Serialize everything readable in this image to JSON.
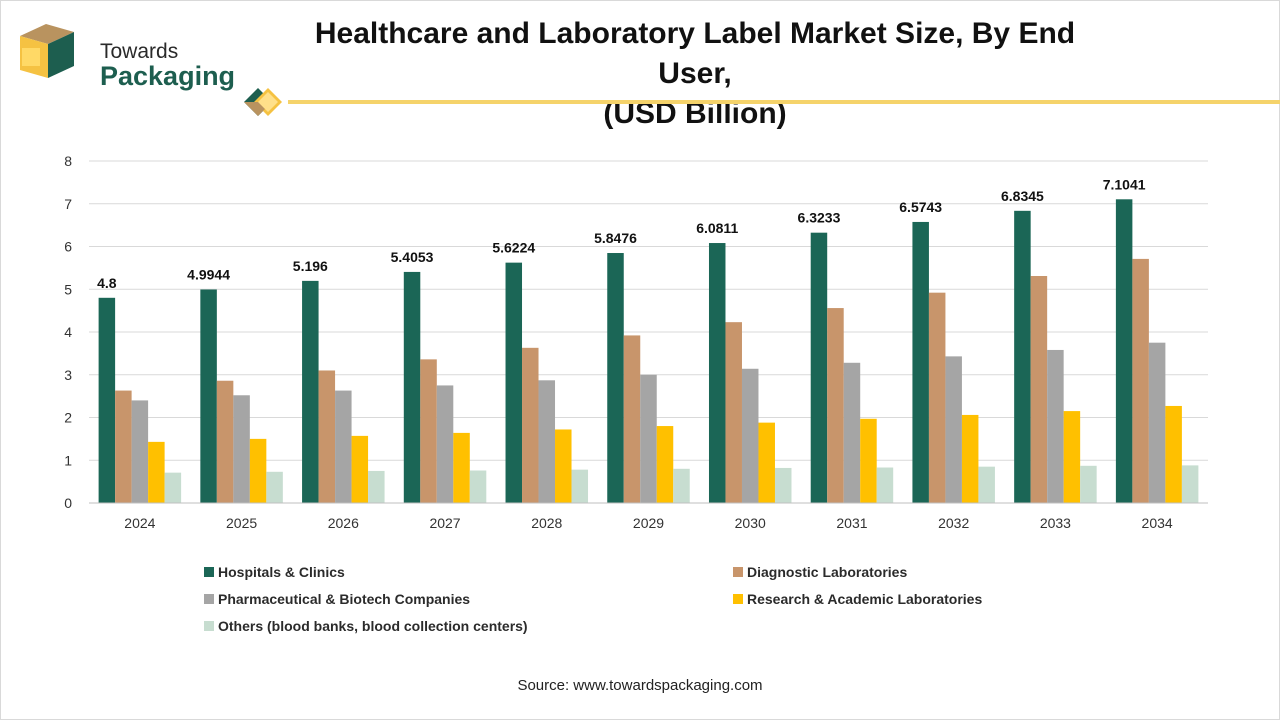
{
  "brand": {
    "line1": "Towards",
    "line2": "Packaging"
  },
  "title_line1": "Healthcare and Laboratory Label Market Size, By End User,",
  "title_line2": "(USD Billion)",
  "source": "Source: www.towardspackaging.com",
  "colors": {
    "brand_green": "#1d5e4f",
    "brand_gold": "#f5c242",
    "divider": "#f5d36b"
  },
  "chart_data": {
    "type": "bar",
    "title": "Healthcare and Laboratory Label Market Size, By End User, (USD Billion)",
    "categories": [
      "2024",
      "2025",
      "2026",
      "2027",
      "2028",
      "2029",
      "2030",
      "2031",
      "2032",
      "2033",
      "2034"
    ],
    "ylim": [
      0,
      8
    ],
    "yticks": [
      "0",
      "1",
      "2",
      "3",
      "4",
      "5",
      "6",
      "7",
      "8"
    ],
    "grid": true,
    "legend_position": "bottom",
    "series": [
      {
        "name": "Hospitals & Clinics",
        "color": "#1b6656",
        "values": [
          4.8,
          4.9944,
          5.196,
          5.4053,
          5.6224,
          5.8476,
          6.0811,
          6.3233,
          6.5743,
          6.8345,
          7.1041
        ],
        "labels": [
          "4.8",
          "4.9944",
          "5.196",
          "5.4053",
          "5.6224",
          "5.8476",
          "6.0811",
          "6.3233",
          "6.5743",
          "6.8345",
          "7.1041"
        ]
      },
      {
        "name": "Diagnostic Laboratories",
        "color": "#c8956b",
        "values": [
          2.63,
          2.86,
          3.1,
          3.36,
          3.63,
          3.92,
          4.23,
          4.56,
          4.92,
          5.31,
          5.71
        ]
      },
      {
        "name": "Pharmaceutical & Biotech Companies",
        "color": "#a5a5a5",
        "values": [
          2.4,
          2.52,
          2.63,
          2.75,
          2.87,
          3.0,
          3.14,
          3.28,
          3.43,
          3.58,
          3.75
        ]
      },
      {
        "name": "Research & Academic Laboratories",
        "color": "#ffc000",
        "values": [
          1.43,
          1.5,
          1.57,
          1.64,
          1.72,
          1.8,
          1.88,
          1.97,
          2.06,
          2.15,
          2.27
        ]
      },
      {
        "name": "Others (blood banks, blood collection centers)",
        "color": "#c7ddd0",
        "values": [
          0.71,
          0.73,
          0.75,
          0.76,
          0.78,
          0.8,
          0.82,
          0.83,
          0.85,
          0.87,
          0.88
        ]
      }
    ]
  }
}
